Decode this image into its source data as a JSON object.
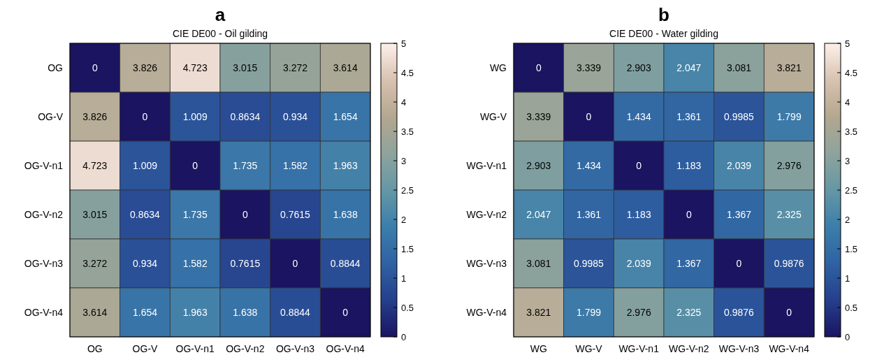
{
  "chart_data": [
    {
      "type": "heatmap",
      "title": "a",
      "subtitle": "CIE DE00 - Oil gilding",
      "categories": [
        "OG",
        "OG-V",
        "OG-V-n1",
        "OG-V-n2",
        "OG-V-n3",
        "OG-V-n4"
      ],
      "y_categories": [
        "OG",
        "OG-V",
        "OG-V-n1",
        "OG-V-n2",
        "OG-V-n3",
        "OG-V-n4"
      ],
      "cells": [
        [
          0,
          3.826,
          4.723,
          3.015,
          3.272,
          3.614
        ],
        [
          3.826,
          0,
          1.009,
          0.8634,
          0.934,
          1.654
        ],
        [
          4.723,
          1.009,
          0,
          1.735,
          1.582,
          1.963
        ],
        [
          3.015,
          0.8634,
          1.735,
          0,
          0.7615,
          1.638
        ],
        [
          3.272,
          0.934,
          1.582,
          0.7615,
          0,
          0.8844
        ],
        [
          3.614,
          1.654,
          1.963,
          1.638,
          0.8844,
          0
        ]
      ],
      "clim": [
        0,
        5
      ],
      "cticks": [
        0,
        0.5,
        1,
        1.5,
        2,
        2.5,
        3,
        3.5,
        4,
        4.5,
        5
      ],
      "data_labels": true
    },
    {
      "type": "heatmap",
      "title": "b",
      "subtitle": "CIE DE00 - Water gilding",
      "categories": [
        "WG",
        "WG-V",
        "WG-V-n1",
        "WG-V-n2",
        "WG-V-n3",
        "WG-V-n4"
      ],
      "y_categories": [
        "WG",
        "WG-V",
        "WG-V-n1",
        "WG-V-n2",
        "WG-V-n3",
        "WG-V-n4"
      ],
      "cells": [
        [
          0,
          3.339,
          2.903,
          2.047,
          3.081,
          3.821
        ],
        [
          3.339,
          0,
          1.434,
          1.361,
          0.9985,
          1.799
        ],
        [
          2.903,
          1.434,
          0,
          1.183,
          2.039,
          2.976
        ],
        [
          2.047,
          1.361,
          1.183,
          0,
          1.367,
          2.325
        ],
        [
          3.081,
          0.9985,
          2.039,
          1.367,
          0,
          0.9876
        ],
        [
          3.821,
          1.799,
          2.976,
          2.325,
          0.9876,
          0
        ]
      ],
      "clim": [
        0,
        5
      ],
      "cticks": [
        0,
        0.5,
        1,
        1.5,
        2,
        2.5,
        3,
        3.5,
        4,
        4.5,
        5
      ],
      "data_labels": true
    }
  ]
}
